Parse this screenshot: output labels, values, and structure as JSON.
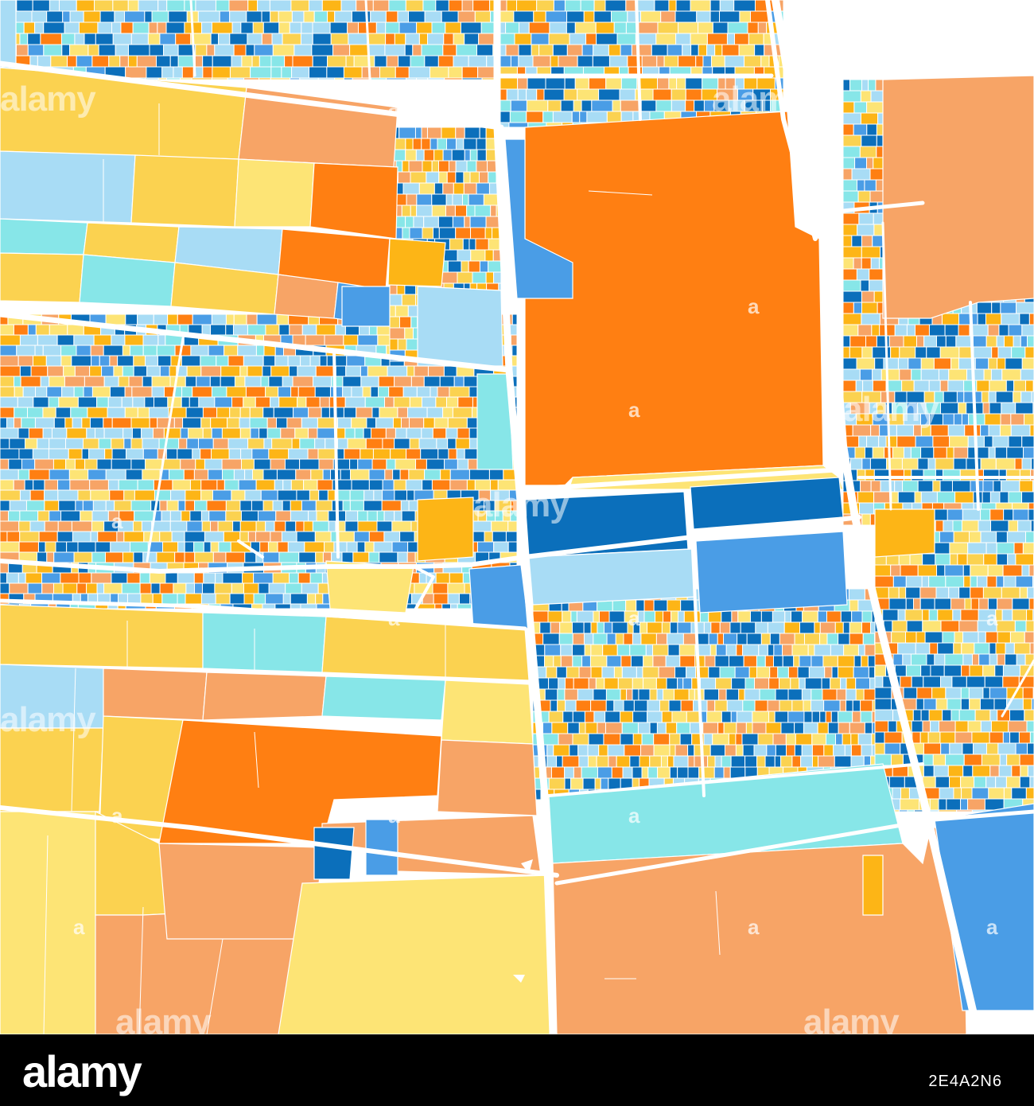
{
  "map": {
    "palette": {
      "orange": "#ff7f12",
      "salmon": "#f7a466",
      "yellow": "#fbd250",
      "pale_yellow": "#fde475",
      "amber": "#fdb516",
      "cyan": "#87e6e8",
      "light_blue": "#a8dcf5",
      "mid_blue": "#4a9de6",
      "dark_blue": "#0b6fbb",
      "road": "#ffffff"
    }
  },
  "watermark": {
    "text": "alamy",
    "symbol": "a"
  },
  "footer": {
    "logo": "alamy",
    "image_id": "2E4A2N6"
  }
}
